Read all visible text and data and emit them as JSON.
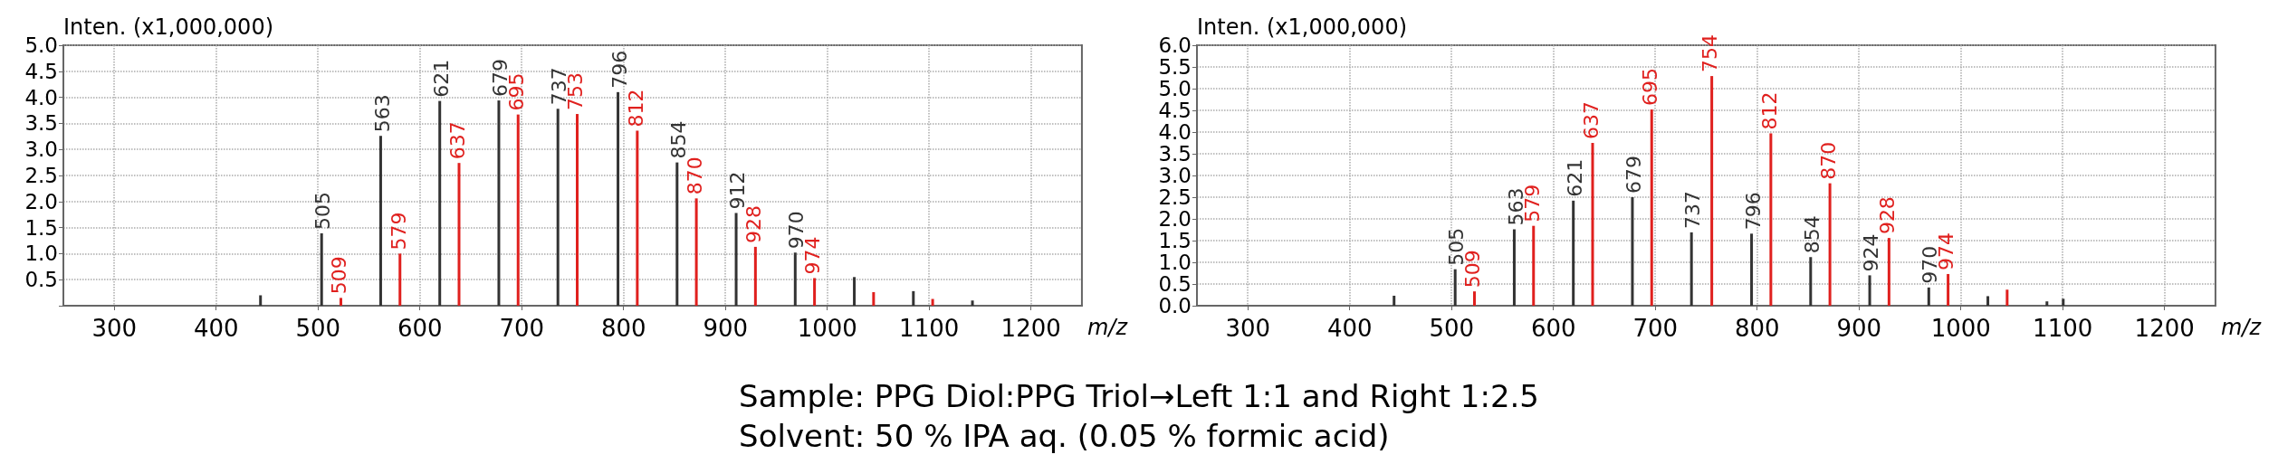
{
  "chart_data": [
    {
      "type": "bar",
      "ylabel": "Inten. (x1,000,000)",
      "xlabel": "m/z",
      "xlim": [
        250,
        1250
      ],
      "ylim": [
        0,
        5.0
      ],
      "xticks": [
        300,
        400,
        500,
        600,
        700,
        800,
        900,
        1000,
        1100,
        1200
      ],
      "yticks": [
        {
          "value": 0,
          "label": null
        },
        0.5,
        {
          "value": 1,
          "label": "1.0"
        },
        1.5,
        {
          "value": 2,
          "label": "2.0"
        },
        2.5,
        {
          "value": 3,
          "label": "3.0"
        },
        3.5,
        {
          "value": 4,
          "label": "4.0"
        },
        4.5,
        {
          "value": 5,
          "label": "5.0"
        }
      ],
      "grid": true,
      "series": [
        {
          "color": "#333333",
          "x": [
            445,
            505,
            563,
            621,
            679,
            737,
            796,
            854,
            912,
            970,
            1028,
            1086,
            1144
          ],
          "values": [
            0.2,
            1.39,
            3.26,
            3.93,
            3.94,
            3.78,
            4.1,
            2.75,
            1.78,
            1.02,
            0.55,
            0.28,
            0.1
          ]
        },
        {
          "color": "#e0201e",
          "x": [
            521,
            579,
            637,
            695,
            753,
            812,
            870,
            928,
            986,
            1044,
            1102
          ],
          "values": [
            0.15,
            1.0,
            2.74,
            3.67,
            3.68,
            3.36,
            2.06,
            1.13,
            0.53,
            0.26,
            0.13
          ]
        }
      ],
      "annotations": [
        "Sample: PPG Diol:PPG Triol→Left 1:1 and Right 1:2.5",
        "Solvent: 50 % IPA aq. (0.05 % formic acid)",
        {
          "text": "505",
          "x": 505,
          "y": 1.39
        },
        {
          "text": "563",
          "x": 563,
          "y": 3.26
        },
        {
          "text": "621",
          "x": 621,
          "y": 3.93
        },
        {
          "text": "679",
          "x": 679,
          "y": 3.94
        },
        {
          "text": "737",
          "x": 737,
          "y": 3.78
        },
        {
          "text": "796",
          "x": 796,
          "y": 4.1
        },
        {
          "text": "854",
          "x": 854,
          "y": 2.75
        },
        {
          "text": "912",
          "x": 912,
          "y": 1.78
        },
        {
          "text": "970",
          "x": 970,
          "y": 1.02
        },
        {
          "text": "509",
          "x": 521,
          "y": 0.15
        },
        {
          "text": "579",
          "x": 579,
          "y": 1.0
        },
        {
          "text": "637",
          "x": 637,
          "y": 2.74
        },
        {
          "text": "695",
          "x": 695,
          "y": 3.67
        },
        {
          "text": "753",
          "x": 753,
          "y": 3.68
        },
        {
          "text": "812",
          "x": 812,
          "y": 3.36
        },
        {
          "text": "870",
          "x": 870,
          "y": 2.06
        },
        {
          "text": "928",
          "x": 928,
          "y": 1.13
        },
        {
          "text": "974",
          "x": 986,
          "y": 0.53
        }
      ]
    },
    {
      "type": "bar",
      "ylabel": "Inten. (x1,000,000)",
      "xlabel": "m/z",
      "xlim": [
        250,
        1250
      ],
      "ylim": [
        0,
        6.0
      ],
      "xticks": [
        300,
        400,
        500,
        600,
        700,
        800,
        900,
        1000,
        1100,
        1200
      ],
      "yticks": [
        {
          "value": 0,
          "label": "0.0"
        },
        0.5,
        {
          "value": 1,
          "label": "1.0"
        },
        1.5,
        {
          "value": 2,
          "label": "2.0"
        },
        2.5,
        {
          "value": 3,
          "label": "3.0"
        },
        3.5,
        {
          "value": 4,
          "label": "4.0"
        },
        4.5,
        {
          "value": 5,
          "label": "5.0"
        },
        5.5,
        {
          "value": 6,
          "label": "6.0"
        }
      ],
      "grid": true,
      "series": [
        {
          "color": "#333333",
          "x": [
            445,
            505,
            563,
            621,
            679,
            737,
            796,
            854,
            912,
            970,
            1028,
            1086,
            1102
          ],
          "values": [
            0.23,
            0.84,
            1.76,
            2.42,
            2.5,
            1.69,
            1.66,
            1.12,
            0.7,
            0.42,
            0.22,
            0.1,
            0.16
          ]
        },
        {
          "color": "#e0201e",
          "x": [
            521,
            579,
            637,
            695,
            754,
            812,
            870,
            928,
            986,
            1044
          ],
          "values": [
            0.33,
            1.84,
            3.75,
            4.52,
            5.29,
            3.97,
            2.82,
            1.56,
            0.73,
            0.37
          ]
        }
      ],
      "annotations": [
        {
          "text": "505",
          "x": 505,
          "y": 0.84
        },
        {
          "text": "563",
          "x": 563,
          "y": 1.76
        },
        {
          "text": "621",
          "x": 621,
          "y": 2.42
        },
        {
          "text": "679",
          "x": 679,
          "y": 2.5
        },
        {
          "text": "737",
          "x": 737,
          "y": 1.69
        },
        {
          "text": "796",
          "x": 796,
          "y": 1.66
        },
        {
          "text": "854",
          "x": 854,
          "y": 1.12
        },
        {
          "text": "924",
          "x": 912,
          "y": 0.7
        },
        {
          "text": "970",
          "x": 970,
          "y": 0.42
        },
        {
          "text": "509",
          "x": 521,
          "y": 0.33
        },
        {
          "text": "579",
          "x": 579,
          "y": 1.84
        },
        {
          "text": "637",
          "x": 637,
          "y": 3.75
        },
        {
          "text": "695",
          "x": 695,
          "y": 4.52
        },
        {
          "text": "754",
          "x": 754,
          "y": 5.29
        },
        {
          "text": "812",
          "x": 812,
          "y": 3.97
        },
        {
          "text": "870",
          "x": 870,
          "y": 2.82
        },
        {
          "text": "928",
          "x": 928,
          "y": 1.56
        },
        {
          "text": "974",
          "x": 986,
          "y": 0.73
        }
      ]
    }
  ]
}
